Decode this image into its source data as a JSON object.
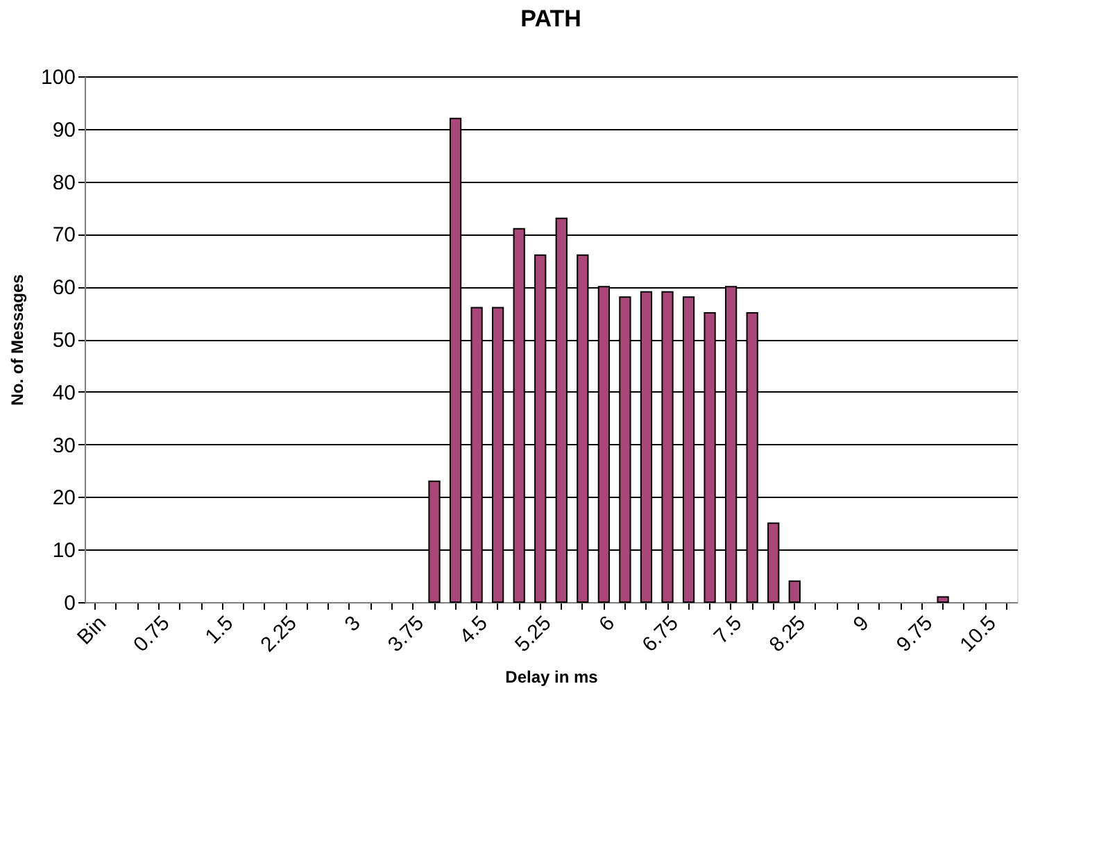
{
  "chart_data": {
    "type": "bar",
    "title": "PATH",
    "xlabel": "Delay in ms",
    "ylabel": "No. of Messages",
    "categories": [
      "Bin",
      null,
      null,
      "0.75",
      null,
      null,
      "1.5",
      null,
      null,
      "2.25",
      null,
      null,
      "3",
      null,
      null,
      "3.75",
      null,
      null,
      "4.5",
      null,
      null,
      "5.25",
      null,
      null,
      "6",
      null,
      null,
      "6.75",
      null,
      null,
      "7.5",
      null,
      null,
      "8.25",
      null,
      null,
      "9",
      null,
      null,
      "9.75",
      null,
      null,
      "10.5",
      null
    ],
    "values": [
      0,
      0,
      0,
      0,
      0,
      0,
      0,
      0,
      0,
      0,
      0,
      0,
      0,
      0,
      0,
      0,
      23,
      92,
      56,
      56,
      71,
      66,
      73,
      66,
      60,
      58,
      59,
      59,
      58,
      55,
      60,
      55,
      15,
      4,
      0,
      0,
      0,
      0,
      0,
      0,
      1,
      0,
      0,
      0
    ],
    "color": "#a94878",
    "ylim": [
      0,
      100
    ],
    "yticks": [
      0,
      10,
      20,
      30,
      40,
      50,
      60,
      70,
      80,
      90,
      100
    ],
    "grid": "y"
  }
}
